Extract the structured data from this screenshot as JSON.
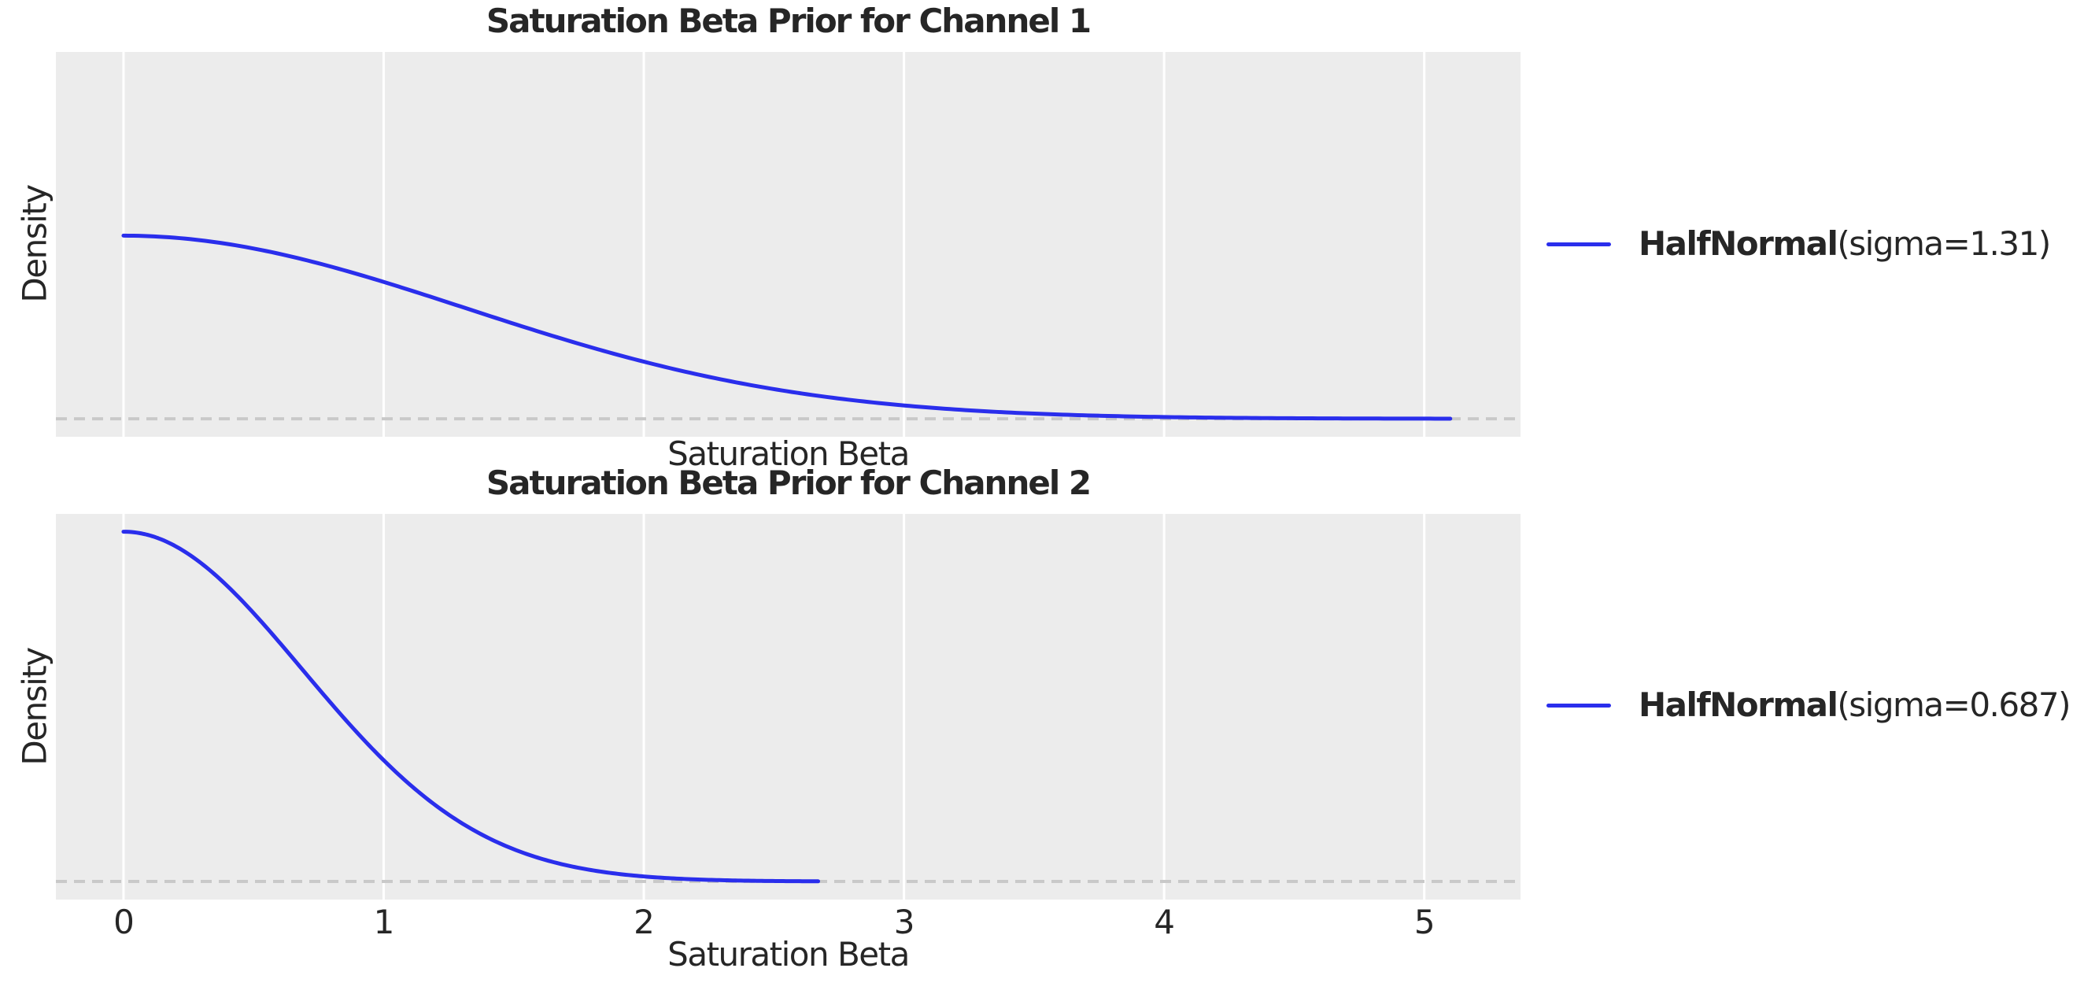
{
  "style": {
    "figure_background": "#ffffff",
    "axes_background": "#ececec",
    "grid_color": "#ffffff",
    "text_color": "#262626",
    "line_color": "#2a2eec",
    "zero_line_color": "#c9c9c9"
  },
  "chart_data": [
    {
      "type": "line",
      "title": "Saturation Beta Prior for Channel 1",
      "xlabel": "Saturation Beta",
      "ylabel": "Density",
      "x_ticks": [
        0,
        1,
        2,
        3,
        4,
        5
      ],
      "x_tick_labels_visible": false,
      "xlim": [
        -0.26,
        5.37
      ],
      "ylim": [
        -0.06,
        1.22
      ],
      "grid": "vertical-only",
      "zero_reference_line": {
        "density": 0,
        "style": "dashed"
      },
      "legend": {
        "name": "HalfNormal",
        "params": "(sigma=1.31)",
        "position": "outside-center-right"
      },
      "series": [
        {
          "name": "HalfNormal(sigma=1.31)",
          "distribution": "HalfNormal",
          "sigma": 1.31,
          "x_range": [
            0,
            5.1
          ],
          "peak_density": 0.609,
          "color": "#2a2eec",
          "points": [
            [
              0.0,
              0.609
            ],
            [
              0.5,
              0.566
            ],
            [
              1.0,
              0.455
            ],
            [
              1.5,
              0.316
            ],
            [
              2.0,
              0.19
            ],
            [
              2.5,
              0.099
            ],
            [
              3.0,
              0.044
            ],
            [
              3.5,
              0.017
            ],
            [
              4.0,
              0.006
            ],
            [
              4.5,
              0.002
            ],
            [
              5.0,
              0.0004
            ],
            [
              5.1,
              0.0003
            ]
          ]
        }
      ]
    },
    {
      "type": "line",
      "title": "Saturation Beta Prior for Channel 2",
      "xlabel": "Saturation Beta",
      "ylabel": "Density",
      "x_ticks": [
        0,
        1,
        2,
        3,
        4,
        5
      ],
      "x_tick_labels_visible": true,
      "xlim": [
        -0.26,
        5.37
      ],
      "ylim": [
        -0.06,
        1.22
      ],
      "grid": "vertical-only",
      "zero_reference_line": {
        "density": 0,
        "style": "dashed"
      },
      "legend": {
        "name": "HalfNormal",
        "params": "(sigma=0.687)",
        "position": "outside-center-right"
      },
      "series": [
        {
          "name": "HalfNormal(sigma=0.687)",
          "distribution": "HalfNormal",
          "sigma": 0.687,
          "x_range": [
            0,
            2.67
          ],
          "peak_density": 1.161,
          "color": "#2a2eec",
          "points": [
            [
              0.0,
              1.161
            ],
            [
              0.25,
              1.087
            ],
            [
              0.5,
              0.891
            ],
            [
              0.75,
              0.64
            ],
            [
              1.0,
              0.403
            ],
            [
              1.25,
              0.222
            ],
            [
              1.5,
              0.107
            ],
            [
              1.75,
              0.045
            ],
            [
              2.0,
              0.017
            ],
            [
              2.25,
              0.005
            ],
            [
              2.5,
              0.002
            ],
            [
              2.67,
              0.0006
            ]
          ]
        }
      ]
    }
  ]
}
